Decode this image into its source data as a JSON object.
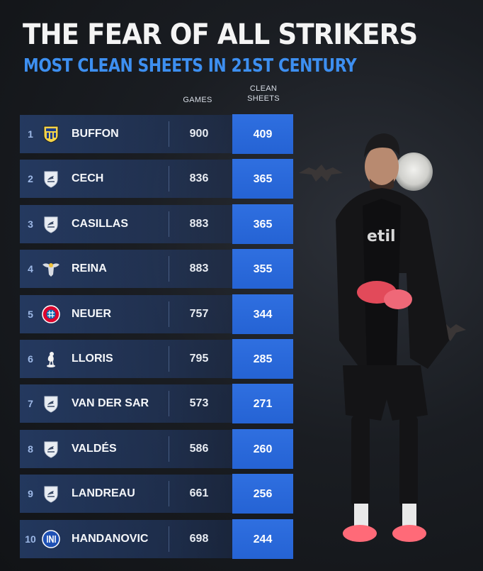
{
  "title": "THE FEAR OF ALL STRIKERS",
  "subtitle": "MOST CLEAN SHEETS IN 21ST CENTURY",
  "columns": {
    "games": "GAMES",
    "clean_sheets_line1": "CLEAN",
    "clean_sheets_line2": "SHEETS"
  },
  "colors": {
    "accent": "#3d8ff0",
    "clean_sheet_cell": "#2563d4",
    "row_band": "#2f5496"
  },
  "chart_data": {
    "type": "table",
    "title": "THE FEAR OF ALL STRIKERS",
    "subtitle": "MOST CLEAN SHEETS IN 21ST CENTURY",
    "headers": [
      "GAMES",
      "CLEAN SHEETS"
    ],
    "rows": [
      {
        "rank": "1",
        "player": "BUFFON",
        "club_badge": "parma-crest-icon",
        "games": "900",
        "clean_sheets": "409"
      },
      {
        "rank": "2",
        "player": "CECH",
        "club_badge": "shield-crest-icon",
        "games": "836",
        "clean_sheets": "365"
      },
      {
        "rank": "3",
        "player": "CASILLAS",
        "club_badge": "shield-crest-icon",
        "games": "883",
        "clean_sheets": "365"
      },
      {
        "rank": "4",
        "player": "REINA",
        "club_badge": "lazio-eagle-icon",
        "games": "883",
        "clean_sheets": "355"
      },
      {
        "rank": "5",
        "player": "NEUER",
        "club_badge": "bayern-crest-icon",
        "games": "757",
        "clean_sheets": "344"
      },
      {
        "rank": "6",
        "player": "LLORIS",
        "club_badge": "tottenham-cockerel-icon",
        "games": "795",
        "clean_sheets": "285"
      },
      {
        "rank": "7",
        "player": "VAN DER SAR",
        "club_badge": "shield-crest-icon",
        "games": "573",
        "clean_sheets": "271"
      },
      {
        "rank": "8",
        "player": "VALDÉS",
        "club_badge": "shield-crest-icon",
        "games": "586",
        "clean_sheets": "260"
      },
      {
        "rank": "9",
        "player": "LANDREAU",
        "club_badge": "shield-crest-icon",
        "games": "661",
        "clean_sheets": "256"
      },
      {
        "rank": "10",
        "player": "HANDANOVIC",
        "club_badge": "inter-crest-icon",
        "games": "698",
        "clean_sheets": "244"
      }
    ]
  }
}
